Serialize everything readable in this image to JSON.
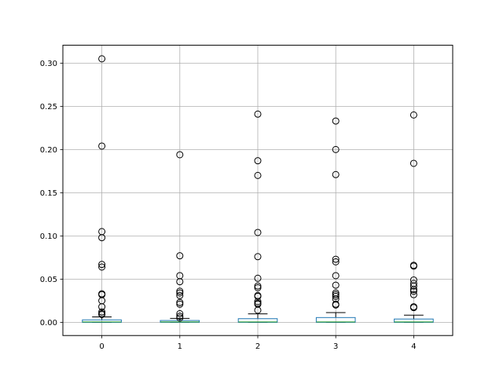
{
  "chart_data": {
    "type": "box",
    "title": "",
    "xlabel": "",
    "ylabel": "",
    "categories": [
      "0",
      "1",
      "2",
      "3",
      "4"
    ],
    "ylim": [
      -0.0153,
      0.3207
    ],
    "yticks": [
      0.0,
      0.05,
      0.1,
      0.15,
      0.2,
      0.25,
      0.3
    ],
    "ytick_labels": [
      "0.00",
      "0.05",
      "0.10",
      "0.15",
      "0.20",
      "0.25",
      "0.30"
    ],
    "grid": true,
    "colors": {
      "box": "#1f77b4",
      "median": "#2ca02c",
      "whisker": "#000000",
      "flier": "#000000",
      "grid": "#b0b0b0"
    },
    "series": [
      {
        "q1": 0.0,
        "median": 0.0005,
        "q3": 0.0028,
        "whisker_low": 0.0,
        "whisker_high": 0.0062,
        "fliers": [
          0.305,
          0.204,
          0.105,
          0.098,
          0.067,
          0.064,
          0.033,
          0.032,
          0.025,
          0.018,
          0.012,
          0.01,
          0.009
        ]
      },
      {
        "q1": 0.0,
        "median": 0.0004,
        "q3": 0.0021,
        "whisker_low": 0.0,
        "whisker_high": 0.0045,
        "fliers": [
          0.194,
          0.077,
          0.054,
          0.047,
          0.036,
          0.034,
          0.031,
          0.023,
          0.021,
          0.01,
          0.007,
          0.005
        ]
      },
      {
        "q1": 0.0,
        "median": 0.0005,
        "q3": 0.0042,
        "whisker_low": 0.0,
        "whisker_high": 0.0098,
        "fliers": [
          0.241,
          0.187,
          0.17,
          0.104,
          0.076,
          0.051,
          0.042,
          0.04,
          0.031,
          0.03,
          0.024,
          0.022,
          0.021,
          0.014
        ]
      },
      {
        "q1": 0.0,
        "median": 0.0005,
        "q3": 0.0055,
        "whisker_low": 0.0,
        "whisker_high": 0.0112,
        "fliers": [
          0.233,
          0.2,
          0.171,
          0.073,
          0.07,
          0.054,
          0.043,
          0.034,
          0.032,
          0.03,
          0.027,
          0.021,
          0.02
        ]
      },
      {
        "q1": 0.0,
        "median": 0.0005,
        "q3": 0.0038,
        "whisker_low": 0.0,
        "whisker_high": 0.0083,
        "fliers": [
          0.24,
          0.184,
          0.066,
          0.065,
          0.049,
          0.045,
          0.042,
          0.038,
          0.036,
          0.032,
          0.018,
          0.017
        ]
      }
    ]
  }
}
